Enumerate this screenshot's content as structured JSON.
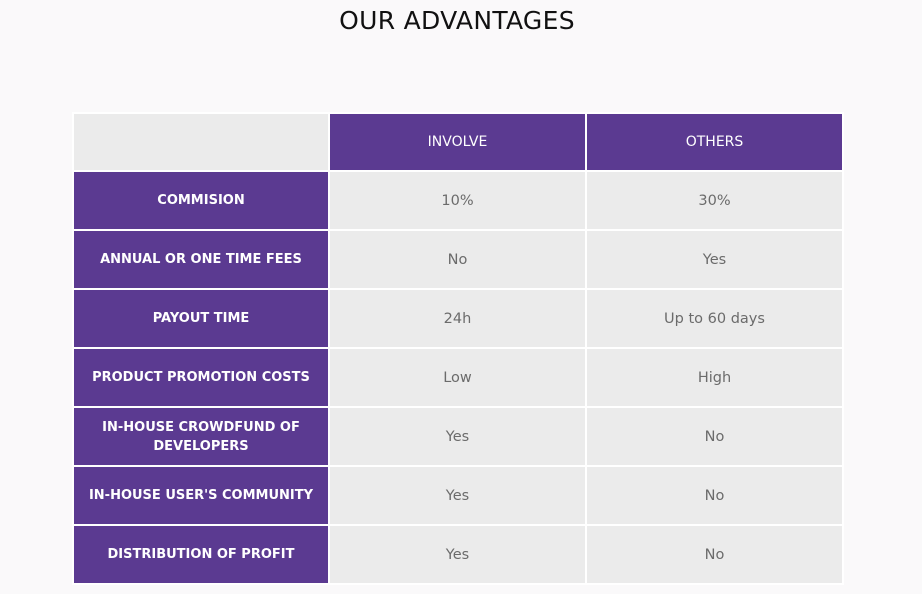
{
  "page": {
    "title": "OUR ADVANTAGES"
  },
  "table": {
    "headers": [
      "",
      "INVOLVE",
      "OTHERS"
    ],
    "rows": [
      {
        "label": "COMMISION",
        "involve": "10%",
        "others": "30%"
      },
      {
        "label": "ANNUAL OR ONE TIME FEES",
        "involve": "No",
        "others": "Yes"
      },
      {
        "label": "PAYOUT TIME",
        "involve": "24h",
        "others": "Up to 60 days"
      },
      {
        "label": "PRODUCT PROMOTION COSTS",
        "involve": "Low",
        "others": "High"
      },
      {
        "label": "IN-HOUSE CROWDFUND OF DEVELOPERS",
        "involve": "Yes",
        "others": "No"
      },
      {
        "label": "IN-HOUSE USER'S COMMUNITY",
        "involve": "Yes",
        "others": "No"
      },
      {
        "label": "DISTRIBUTION OF PROFIT",
        "involve": "Yes",
        "others": "No"
      }
    ]
  },
  "colors": {
    "accent": "#5b3a91",
    "cell_background": "#ebebeb",
    "page_background": "#faf9fa"
  }
}
